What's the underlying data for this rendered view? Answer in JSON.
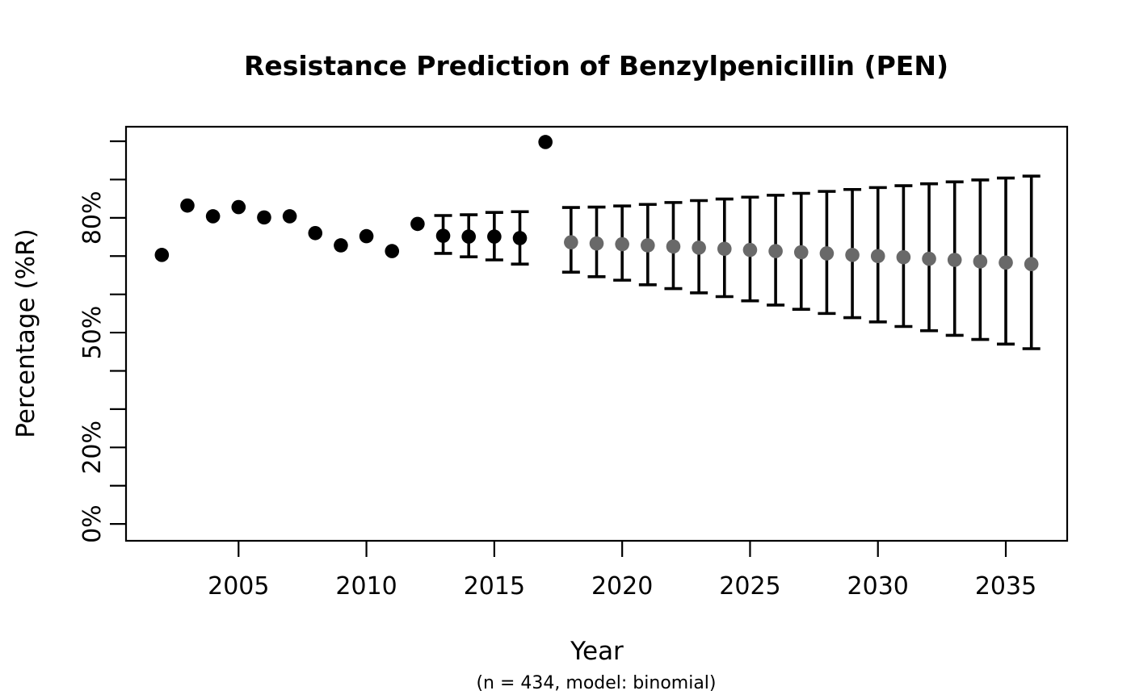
{
  "chart_data": {
    "type": "scatter",
    "title": "Resistance Prediction of Benzylpenicillin (PEN)",
    "xlabel": "Year",
    "xlabel_note": "(n = 434, model: binomial)",
    "ylabel": "Percentage (%R)",
    "xlim": [
      2000.6,
      2037.4
    ],
    "ylim": [
      -4.4,
      103.8
    ],
    "grid": false,
    "legend": "none",
    "x_ticks": [
      2005,
      2010,
      2015,
      2020,
      2025,
      2030,
      2035
    ],
    "y_tick_step": 10,
    "y_tick_min": 0,
    "y_tick_max": 100,
    "y_labeled_ticks": [
      {
        "value": 0,
        "label": "0%"
      },
      {
        "value": 20,
        "label": "20%"
      },
      {
        "value": 50,
        "label": "50%"
      },
      {
        "value": 80,
        "label": "80%"
      }
    ],
    "colors": {
      "observed_point": "#000000",
      "predicted_point": "#696969",
      "error_bar": "#000000",
      "axis": "#000000"
    },
    "series": [
      {
        "name": "observed",
        "point_color": "#000000",
        "points": [
          {
            "year": 2002,
            "value": 70.3
          },
          {
            "year": 2003,
            "value": 83.2
          },
          {
            "year": 2004,
            "value": 80.4
          },
          {
            "year": 2005,
            "value": 82.8
          },
          {
            "year": 2006,
            "value": 80.1
          },
          {
            "year": 2007,
            "value": 80.4
          },
          {
            "year": 2008,
            "value": 76.0
          },
          {
            "year": 2009,
            "value": 72.8
          },
          {
            "year": 2010,
            "value": 75.2
          },
          {
            "year": 2011,
            "value": 71.3
          },
          {
            "year": 2012,
            "value": 78.4
          },
          {
            "year": 2013,
            "value": 75.3,
            "lower": 70.7,
            "upper": 80.6
          },
          {
            "year": 2014,
            "value": 75.1,
            "lower": 69.8,
            "upper": 80.8
          },
          {
            "year": 2015,
            "value": 75.1,
            "lower": 69.0,
            "upper": 81.4
          },
          {
            "year": 2016,
            "value": 74.7,
            "lower": 67.9,
            "upper": 81.6
          },
          {
            "year": 2017,
            "value": 99.8
          }
        ]
      },
      {
        "name": "predicted",
        "point_color": "#696969",
        "points": [
          {
            "year": 2018,
            "value": 73.6,
            "lower": 65.8,
            "upper": 82.7
          },
          {
            "year": 2019,
            "value": 73.3,
            "lower": 64.6,
            "upper": 82.8
          },
          {
            "year": 2020,
            "value": 73.1,
            "lower": 63.7,
            "upper": 83.1
          },
          {
            "year": 2021,
            "value": 72.8,
            "lower": 62.5,
            "upper": 83.5
          },
          {
            "year": 2022,
            "value": 72.5,
            "lower": 61.5,
            "upper": 84.0
          },
          {
            "year": 2023,
            "value": 72.2,
            "lower": 60.4,
            "upper": 84.5
          },
          {
            "year": 2024,
            "value": 71.9,
            "lower": 59.4,
            "upper": 84.9
          },
          {
            "year": 2025,
            "value": 71.6,
            "lower": 58.3,
            "upper": 85.4
          },
          {
            "year": 2026,
            "value": 71.3,
            "lower": 57.2,
            "upper": 85.9
          },
          {
            "year": 2027,
            "value": 71.0,
            "lower": 56.1,
            "upper": 86.4
          },
          {
            "year": 2028,
            "value": 70.7,
            "lower": 55.0,
            "upper": 86.9
          },
          {
            "year": 2029,
            "value": 70.3,
            "lower": 53.9,
            "upper": 87.4
          },
          {
            "year": 2030,
            "value": 70.0,
            "lower": 52.8,
            "upper": 87.9
          },
          {
            "year": 2031,
            "value": 69.7,
            "lower": 51.6,
            "upper": 88.4
          },
          {
            "year": 2032,
            "value": 69.3,
            "lower": 50.5,
            "upper": 88.9
          },
          {
            "year": 2033,
            "value": 69.0,
            "lower": 49.3,
            "upper": 89.4
          },
          {
            "year": 2034,
            "value": 68.6,
            "lower": 48.2,
            "upper": 89.9
          },
          {
            "year": 2035,
            "value": 68.3,
            "lower": 47.0,
            "upper": 90.4
          },
          {
            "year": 2036,
            "value": 67.9,
            "lower": 45.8,
            "upper": 90.9
          }
        ]
      }
    ]
  }
}
